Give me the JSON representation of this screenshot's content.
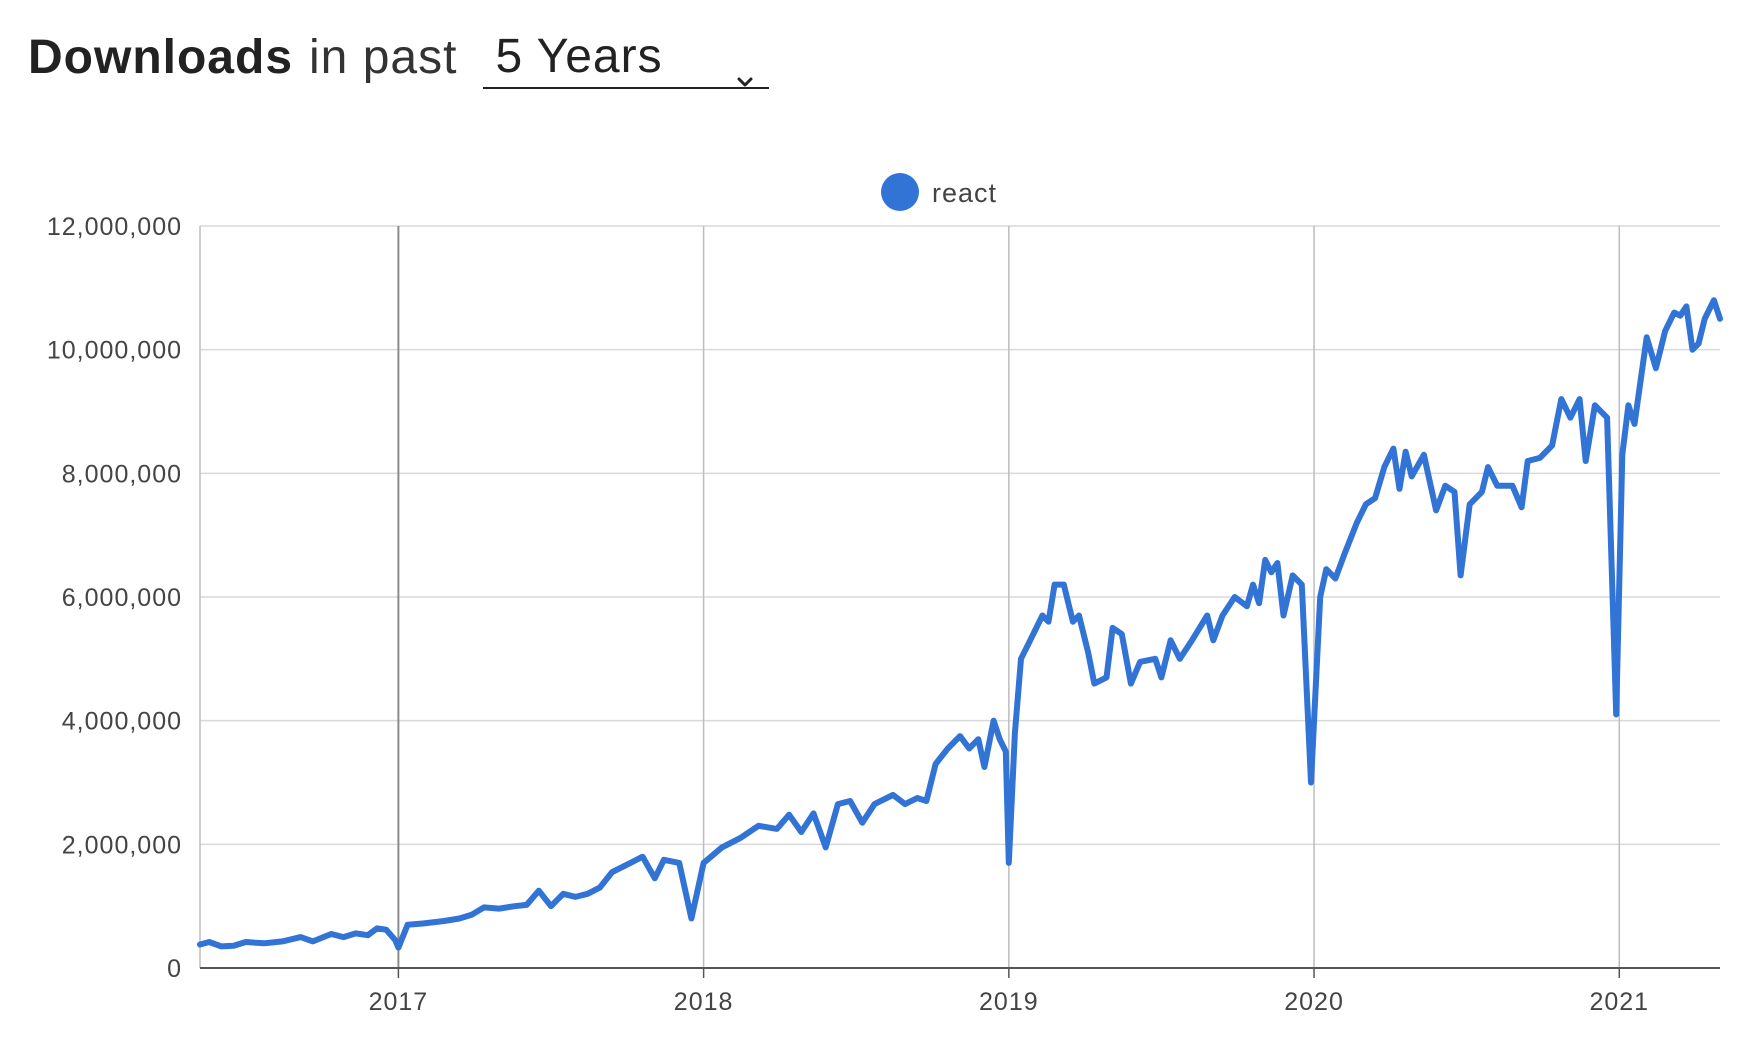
{
  "header": {
    "title": "Downloads",
    "subtitle": "in past",
    "period_select": {
      "value": "5 Years",
      "icon": "chevron-down-icon"
    }
  },
  "colors": {
    "series": "#3273d6",
    "grid": "#d9d9d9",
    "year_grid": "#bdbdbd",
    "highlight_grid": "#8c8c8c",
    "axis": "#555555",
    "tick_text": "#444444"
  },
  "chart_data": {
    "type": "line",
    "title": "",
    "xlabel": "",
    "ylabel": "",
    "legend": {
      "position": "top-center",
      "entries": [
        "react"
      ]
    },
    "grid": true,
    "xlim": [
      2016.35,
      2021.33
    ],
    "ylim": [
      0,
      12000000
    ],
    "y_ticks": [
      0,
      2000000,
      4000000,
      6000000,
      8000000,
      10000000,
      12000000
    ],
    "y_tick_labels": [
      "0",
      "2,000,000",
      "4,000,000",
      "6,000,000",
      "8,000,000",
      "10,000,000",
      "12,000,000"
    ],
    "x_ticks": [
      2017,
      2018,
      2019,
      2020,
      2021
    ],
    "x_tick_labels": [
      "2017",
      "2018",
      "2019",
      "2020",
      "2021"
    ],
    "highlight_year": 2017,
    "series": [
      {
        "name": "react",
        "points": [
          [
            2016.35,
            380000
          ],
          [
            2016.38,
            420000
          ],
          [
            2016.42,
            350000
          ],
          [
            2016.46,
            360000
          ],
          [
            2016.5,
            420000
          ],
          [
            2016.56,
            400000
          ],
          [
            2016.62,
            430000
          ],
          [
            2016.68,
            500000
          ],
          [
            2016.72,
            430000
          ],
          [
            2016.78,
            550000
          ],
          [
            2016.82,
            500000
          ],
          [
            2016.86,
            560000
          ],
          [
            2016.9,
            530000
          ],
          [
            2016.93,
            640000
          ],
          [
            2016.96,
            620000
          ],
          [
            2016.99,
            450000
          ],
          [
            2017.0,
            330000
          ],
          [
            2017.03,
            700000
          ],
          [
            2017.08,
            720000
          ],
          [
            2017.15,
            760000
          ],
          [
            2017.2,
            800000
          ],
          [
            2017.24,
            860000
          ],
          [
            2017.28,
            980000
          ],
          [
            2017.33,
            960000
          ],
          [
            2017.38,
            1000000
          ],
          [
            2017.42,
            1020000
          ],
          [
            2017.46,
            1250000
          ],
          [
            2017.5,
            1000000
          ],
          [
            2017.54,
            1200000
          ],
          [
            2017.58,
            1150000
          ],
          [
            2017.62,
            1200000
          ],
          [
            2017.66,
            1300000
          ],
          [
            2017.7,
            1550000
          ],
          [
            2017.76,
            1700000
          ],
          [
            2017.8,
            1800000
          ],
          [
            2017.84,
            1450000
          ],
          [
            2017.87,
            1750000
          ],
          [
            2017.92,
            1700000
          ],
          [
            2017.96,
            800000
          ],
          [
            2018.0,
            1700000
          ],
          [
            2018.06,
            1950000
          ],
          [
            2018.12,
            2100000
          ],
          [
            2018.18,
            2300000
          ],
          [
            2018.24,
            2250000
          ],
          [
            2018.28,
            2480000
          ],
          [
            2018.32,
            2200000
          ],
          [
            2018.36,
            2500000
          ],
          [
            2018.4,
            1950000
          ],
          [
            2018.44,
            2650000
          ],
          [
            2018.48,
            2700000
          ],
          [
            2018.52,
            2350000
          ],
          [
            2018.56,
            2650000
          ],
          [
            2018.62,
            2800000
          ],
          [
            2018.66,
            2650000
          ],
          [
            2018.7,
            2750000
          ],
          [
            2018.73,
            2700000
          ],
          [
            2018.76,
            3300000
          ],
          [
            2018.8,
            3550000
          ],
          [
            2018.84,
            3750000
          ],
          [
            2018.87,
            3550000
          ],
          [
            2018.9,
            3700000
          ],
          [
            2018.92,
            3250000
          ],
          [
            2018.95,
            4000000
          ],
          [
            2018.97,
            3700000
          ],
          [
            2018.99,
            3500000
          ],
          [
            2019.0,
            1700000
          ],
          [
            2019.02,
            3800000
          ],
          [
            2019.04,
            5000000
          ],
          [
            2019.07,
            5300000
          ],
          [
            2019.11,
            5700000
          ],
          [
            2019.13,
            5600000
          ],
          [
            2019.15,
            6200000
          ],
          [
            2019.18,
            6200000
          ],
          [
            2019.21,
            5600000
          ],
          [
            2019.23,
            5700000
          ],
          [
            2019.26,
            5100000
          ],
          [
            2019.28,
            4600000
          ],
          [
            2019.32,
            4700000
          ],
          [
            2019.34,
            5500000
          ],
          [
            2019.37,
            5400000
          ],
          [
            2019.4,
            4600000
          ],
          [
            2019.43,
            4950000
          ],
          [
            2019.48,
            5000000
          ],
          [
            2019.5,
            4700000
          ],
          [
            2019.53,
            5300000
          ],
          [
            2019.56,
            5000000
          ],
          [
            2019.6,
            5300000
          ],
          [
            2019.65,
            5700000
          ],
          [
            2019.67,
            5300000
          ],
          [
            2019.7,
            5700000
          ],
          [
            2019.74,
            6000000
          ],
          [
            2019.78,
            5850000
          ],
          [
            2019.8,
            6200000
          ],
          [
            2019.82,
            5900000
          ],
          [
            2019.84,
            6600000
          ],
          [
            2019.86,
            6400000
          ],
          [
            2019.88,
            6550000
          ],
          [
            2019.9,
            5700000
          ],
          [
            2019.93,
            6350000
          ],
          [
            2019.96,
            6200000
          ],
          [
            2019.99,
            3000000
          ],
          [
            2020.02,
            6000000
          ],
          [
            2020.04,
            6450000
          ],
          [
            2020.07,
            6300000
          ],
          [
            2020.1,
            6700000
          ],
          [
            2020.14,
            7200000
          ],
          [
            2020.17,
            7500000
          ],
          [
            2020.2,
            7600000
          ],
          [
            2020.23,
            8100000
          ],
          [
            2020.26,
            8400000
          ],
          [
            2020.28,
            7750000
          ],
          [
            2020.3,
            8350000
          ],
          [
            2020.32,
            7950000
          ],
          [
            2020.36,
            8300000
          ],
          [
            2020.4,
            7400000
          ],
          [
            2020.43,
            7800000
          ],
          [
            2020.46,
            7700000
          ],
          [
            2020.48,
            6350000
          ],
          [
            2020.51,
            7500000
          ],
          [
            2020.55,
            7700000
          ],
          [
            2020.57,
            8100000
          ],
          [
            2020.6,
            7800000
          ],
          [
            2020.65,
            7800000
          ],
          [
            2020.68,
            7450000
          ],
          [
            2020.7,
            8200000
          ],
          [
            2020.74,
            8250000
          ],
          [
            2020.78,
            8450000
          ],
          [
            2020.81,
            9200000
          ],
          [
            2020.84,
            8900000
          ],
          [
            2020.87,
            9200000
          ],
          [
            2020.89,
            8200000
          ],
          [
            2020.92,
            9100000
          ],
          [
            2020.96,
            8900000
          ],
          [
            2020.99,
            4100000
          ],
          [
            2021.01,
            8300000
          ],
          [
            2021.03,
            9100000
          ],
          [
            2021.05,
            8800000
          ],
          [
            2021.07,
            9500000
          ],
          [
            2021.09,
            10200000
          ],
          [
            2021.12,
            9700000
          ],
          [
            2021.15,
            10300000
          ],
          [
            2021.18,
            10600000
          ],
          [
            2021.2,
            10550000
          ],
          [
            2021.22,
            10700000
          ],
          [
            2021.24,
            10000000
          ],
          [
            2021.26,
            10100000
          ],
          [
            2021.28,
            10500000
          ],
          [
            2021.31,
            10800000
          ],
          [
            2021.33,
            10500000
          ]
        ]
      }
    ]
  }
}
